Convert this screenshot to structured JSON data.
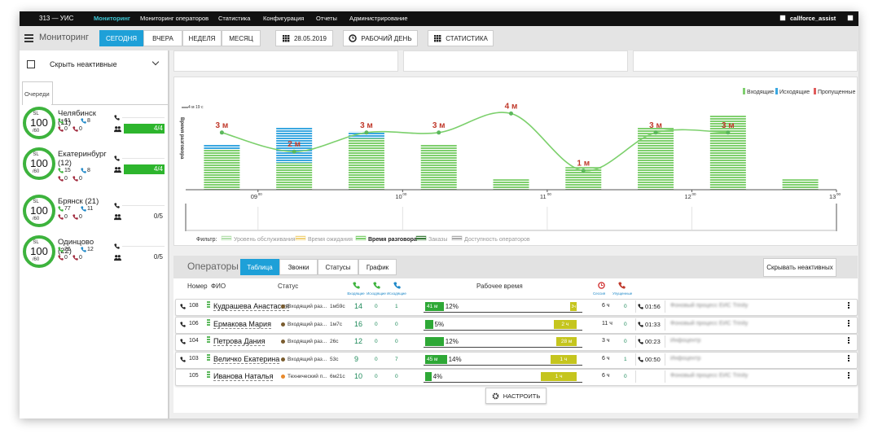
{
  "nav": {
    "brand": "313 — УИС",
    "items": [
      "Мониторинг",
      "Мониторинг операторов",
      "Статистика",
      "Конфигурация",
      "Отчеты",
      "Администрирование"
    ],
    "active": 0,
    "user": "callforce_assist"
  },
  "toolbar": {
    "title": "Мониторинг",
    "periods": [
      "СЕГОДНЯ",
      "ВЧЕРА",
      "НЕДЕЛЯ",
      "МЕСЯЦ"
    ],
    "active": 0,
    "date": "28.05.2019",
    "workday": "РАБОЧИЙ ДЕНЬ",
    "stats": "СТАТИСТИКА"
  },
  "sidebar": {
    "hide_inactive": "Скрыть неактивные",
    "tab": "Очереди",
    "queues": [
      {
        "name": "Челябинск (11)",
        "sl_label": "SL",
        "sl": 100,
        "sl_target": "/60",
        "incoming": 61,
        "outgoing": 8,
        "missed_in": 0,
        "missed_out": 0,
        "agents": "4/4",
        "agents_fill": 1
      },
      {
        "name": "Екатеринбург (12)",
        "sl_label": "SL",
        "sl": 100,
        "sl_target": "/60",
        "incoming": 15,
        "outgoing": 8,
        "missed_in": 0,
        "missed_out": 0,
        "agents": "4/4",
        "agents_fill": 1
      },
      {
        "name": "Брянск (21)",
        "sl_label": "SL",
        "sl": 100,
        "sl_target": "/60",
        "incoming": 77,
        "outgoing": 11,
        "missed_in": 0,
        "missed_out": 0,
        "agents": "0/5",
        "agents_fill": 0
      },
      {
        "name": "Одинцово (22)",
        "sl_label": "SL",
        "sl": 100,
        "sl_target": "/60",
        "incoming": 26,
        "outgoing": 12,
        "missed_in": 0,
        "missed_out": 0,
        "agents": "0/5",
        "agents_fill": 0
      }
    ]
  },
  "chart": {
    "type": "bar",
    "legend": [
      {
        "name": "Входящие",
        "color": "#7fcf6e"
      },
      {
        "name": "Исходящие",
        "color": "#3aa7e0"
      },
      {
        "name": "Пропущенные",
        "color": "#e05b5b"
      }
    ],
    "ylabel": "Время разговора",
    "ylim": [
      0,
      4.3167
    ],
    "yticks": [
      {
        "value": 4.3167,
        "label": "4 м 19 с"
      }
    ],
    "y2lim": [
      0,
      20
    ],
    "xlim": [
      8.5,
      13
    ],
    "xticks": [
      {
        "value": 9,
        "label": "09",
        "minutes": "00"
      },
      {
        "value": 10,
        "label": "10",
        "minutes": "00"
      },
      {
        "value": 11,
        "label": "11",
        "minutes": "00"
      },
      {
        "value": 12,
        "label": "12",
        "minutes": "00"
      },
      {
        "value": 13,
        "label": "13",
        "minutes": "00"
      }
    ],
    "x": [
      8.75,
      9.25,
      9.75,
      10.25,
      10.75,
      11.25,
      11.75,
      12.25,
      12.75
    ],
    "incoming": [
      9.3,
      6.2,
      11.8,
      10.3,
      2.4,
      5.2,
      14.4,
      17,
      2.4
    ],
    "outgoing": [
      1,
      8.2,
      1.5,
      0,
      0,
      0,
      0,
      0,
      0
    ],
    "talk_time": [
      3,
      2,
      3,
      3,
      4,
      1,
      3,
      3,
      null
    ],
    "talk_time_labels": [
      "3 м",
      "2 м",
      "3 м",
      "3 м",
      "4 м",
      "1 м",
      "3 м",
      "3 м",
      null
    ],
    "line_color": "#7cd06c",
    "label_color": "#c0392b",
    "filter": {
      "label": "Фильтр:",
      "items": [
        {
          "name": "Уровень обслуживания",
          "color": "#b5dfae"
        },
        {
          "name": "Время ожидания",
          "color": "#f0d27a"
        },
        {
          "name": "Время разговора",
          "color": "#7fcf6e"
        },
        {
          "name": "Заказы",
          "color": "#3b7d3b"
        },
        {
          "name": "Доступность операторов",
          "color": "#aaaaaa"
        }
      ]
    }
  },
  "operators": {
    "title": "Операторы",
    "tabs": [
      "Таблица",
      "Звонки",
      "Статусы",
      "График"
    ],
    "active": 0,
    "hide": "Скрывать неактивных",
    "columns": {
      "ext": "Номер",
      "name": "ФИО",
      "status": "Статус",
      "incoming": "Входящие",
      "outgoing": "Исходящие",
      "outgoing2": "Исходящие",
      "work": "Рабочее время",
      "session": "Сессия",
      "missed": "Упущенные"
    },
    "rows": [
      {
        "ext": 108,
        "name": "Кудрашева Анастасия",
        "status": "Входящий раз...",
        "status_color": "#7a5c2e",
        "duration": "1м59с",
        "calls": [
          14,
          0,
          1
        ],
        "active_label": "41 м",
        "pct": 12,
        "pct_label": "12%",
        "pause_label": "3ч",
        "pause_pct": 4,
        "session": "6 ч",
        "missed": 0,
        "time": "01:56",
        "process": "Фоновый процесс ЕИС Trinity"
      },
      {
        "ext": 106,
        "name": "Ермакова Мария",
        "status": "Входящий раз...",
        "status_color": "#7a5c2e",
        "duration": "1м7с",
        "calls": [
          16,
          0,
          0
        ],
        "pct": 5,
        "pct_label": "5%",
        "pause_label": "2 ч",
        "pause_pct": 15,
        "session": "11 ч",
        "missed": 0,
        "time": "01:33",
        "process": "Фоновый процесс ЕИС Trinity"
      },
      {
        "ext": 104,
        "name": "Петрова Дания",
        "status": "Входящий раз...",
        "status_color": "#7a5c2e",
        "duration": "26с",
        "calls": [
          12,
          0,
          0
        ],
        "pct": 12,
        "pct_label": "12%",
        "pause_label": "28 м",
        "pause_pct": 13,
        "session": "3 ч",
        "missed": 0,
        "time": "00:23",
        "process": "Инфоцентр"
      },
      {
        "ext": 103,
        "name": "Величко Екатерина",
        "status": "Входящий раз...",
        "status_color": "#7a5c2e",
        "duration": "53с",
        "calls": [
          9,
          0,
          7
        ],
        "active_label": "45 м",
        "pct": 14,
        "pct_label": "14%",
        "pause_label": "1 ч",
        "pause_pct": 17,
        "session": "6 ч",
        "missed": 1,
        "time": "00:50",
        "process": "Инфоцентр"
      },
      {
        "ext": 105,
        "name": "Иванова Наталья",
        "status": "Технический п...",
        "status_color": "#e8892c",
        "duration": "6м21с",
        "calls": [
          10,
          0,
          0
        ],
        "pct": 4,
        "pct_label": "4%",
        "pause_label": "1 ч",
        "pause_pct": 23,
        "session": "6 ч",
        "missed": 0,
        "process": "Фоновый процесс ЕИС Trinity"
      }
    ],
    "configure": "НАСТРОИТЬ"
  }
}
